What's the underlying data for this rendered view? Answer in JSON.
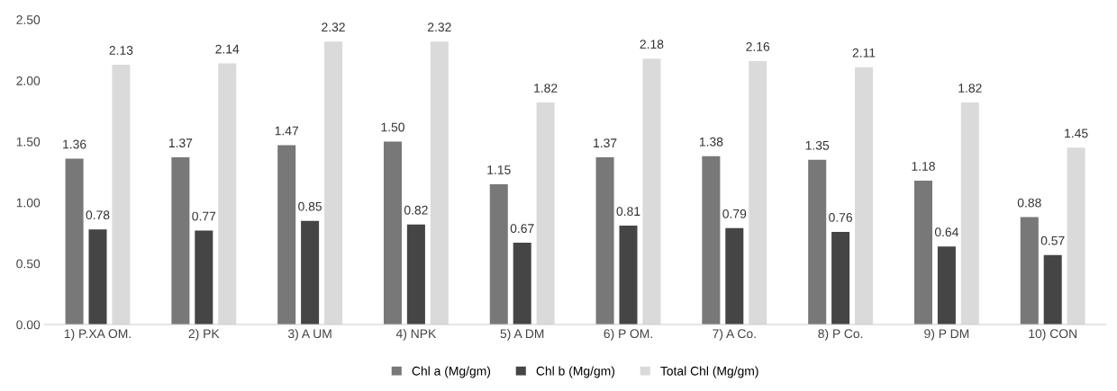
{
  "chart_data": {
    "type": "bar",
    "categories": [
      "1) P.XA OM.",
      "2) PK",
      "3) A UM",
      "4) NPK",
      "5) A DM",
      "6) P OM.",
      "7) A Co.",
      "8) P Co.",
      "9) P DM",
      "10) CON"
    ],
    "series": [
      {
        "name": "Chl a (Mg/gm)",
        "color": "#787878",
        "values": [
          1.36,
          1.37,
          1.47,
          1.5,
          1.15,
          1.37,
          1.38,
          1.35,
          1.18,
          0.88
        ],
        "value_labels": [
          "1.36",
          "1.37",
          "1.47",
          "1.50",
          "1.15",
          "1.37",
          "1.38",
          "1.35",
          "1.18",
          "0.88"
        ]
      },
      {
        "name": "Chl b (Mg/gm)",
        "color": "#454545",
        "values": [
          0.78,
          0.77,
          0.85,
          0.82,
          0.67,
          0.81,
          0.79,
          0.76,
          0.64,
          0.57
        ],
        "value_labels": [
          "0.78",
          "0.77",
          "0.85",
          "0.82",
          "0.67",
          "0.81",
          "0.79",
          "0.76",
          "0.64",
          "0.57"
        ]
      },
      {
        "name": "Total Chl (Mg/gm)",
        "color": "#dadada",
        "values": [
          2.13,
          2.14,
          2.32,
          2.32,
          1.82,
          2.18,
          2.16,
          2.11,
          1.82,
          1.45
        ],
        "value_labels": [
          "2.13",
          "2.14",
          "2.32",
          "2.32",
          "1.82",
          "2.18",
          "2.16",
          "2.11",
          "1.82",
          "1.45"
        ]
      }
    ],
    "ylim": [
      0,
      2.5
    ],
    "yticks": [
      {
        "value": 0,
        "label": "0.00"
      },
      {
        "value": 0.5,
        "label": "0.50"
      },
      {
        "value": 1,
        "label": "1.00"
      },
      {
        "value": 1.5,
        "label": "1.50"
      },
      {
        "value": 2,
        "label": "2.00"
      },
      {
        "value": 2.5,
        "label": "2.50"
      }
    ],
    "grid": false,
    "legend": "bottom"
  }
}
